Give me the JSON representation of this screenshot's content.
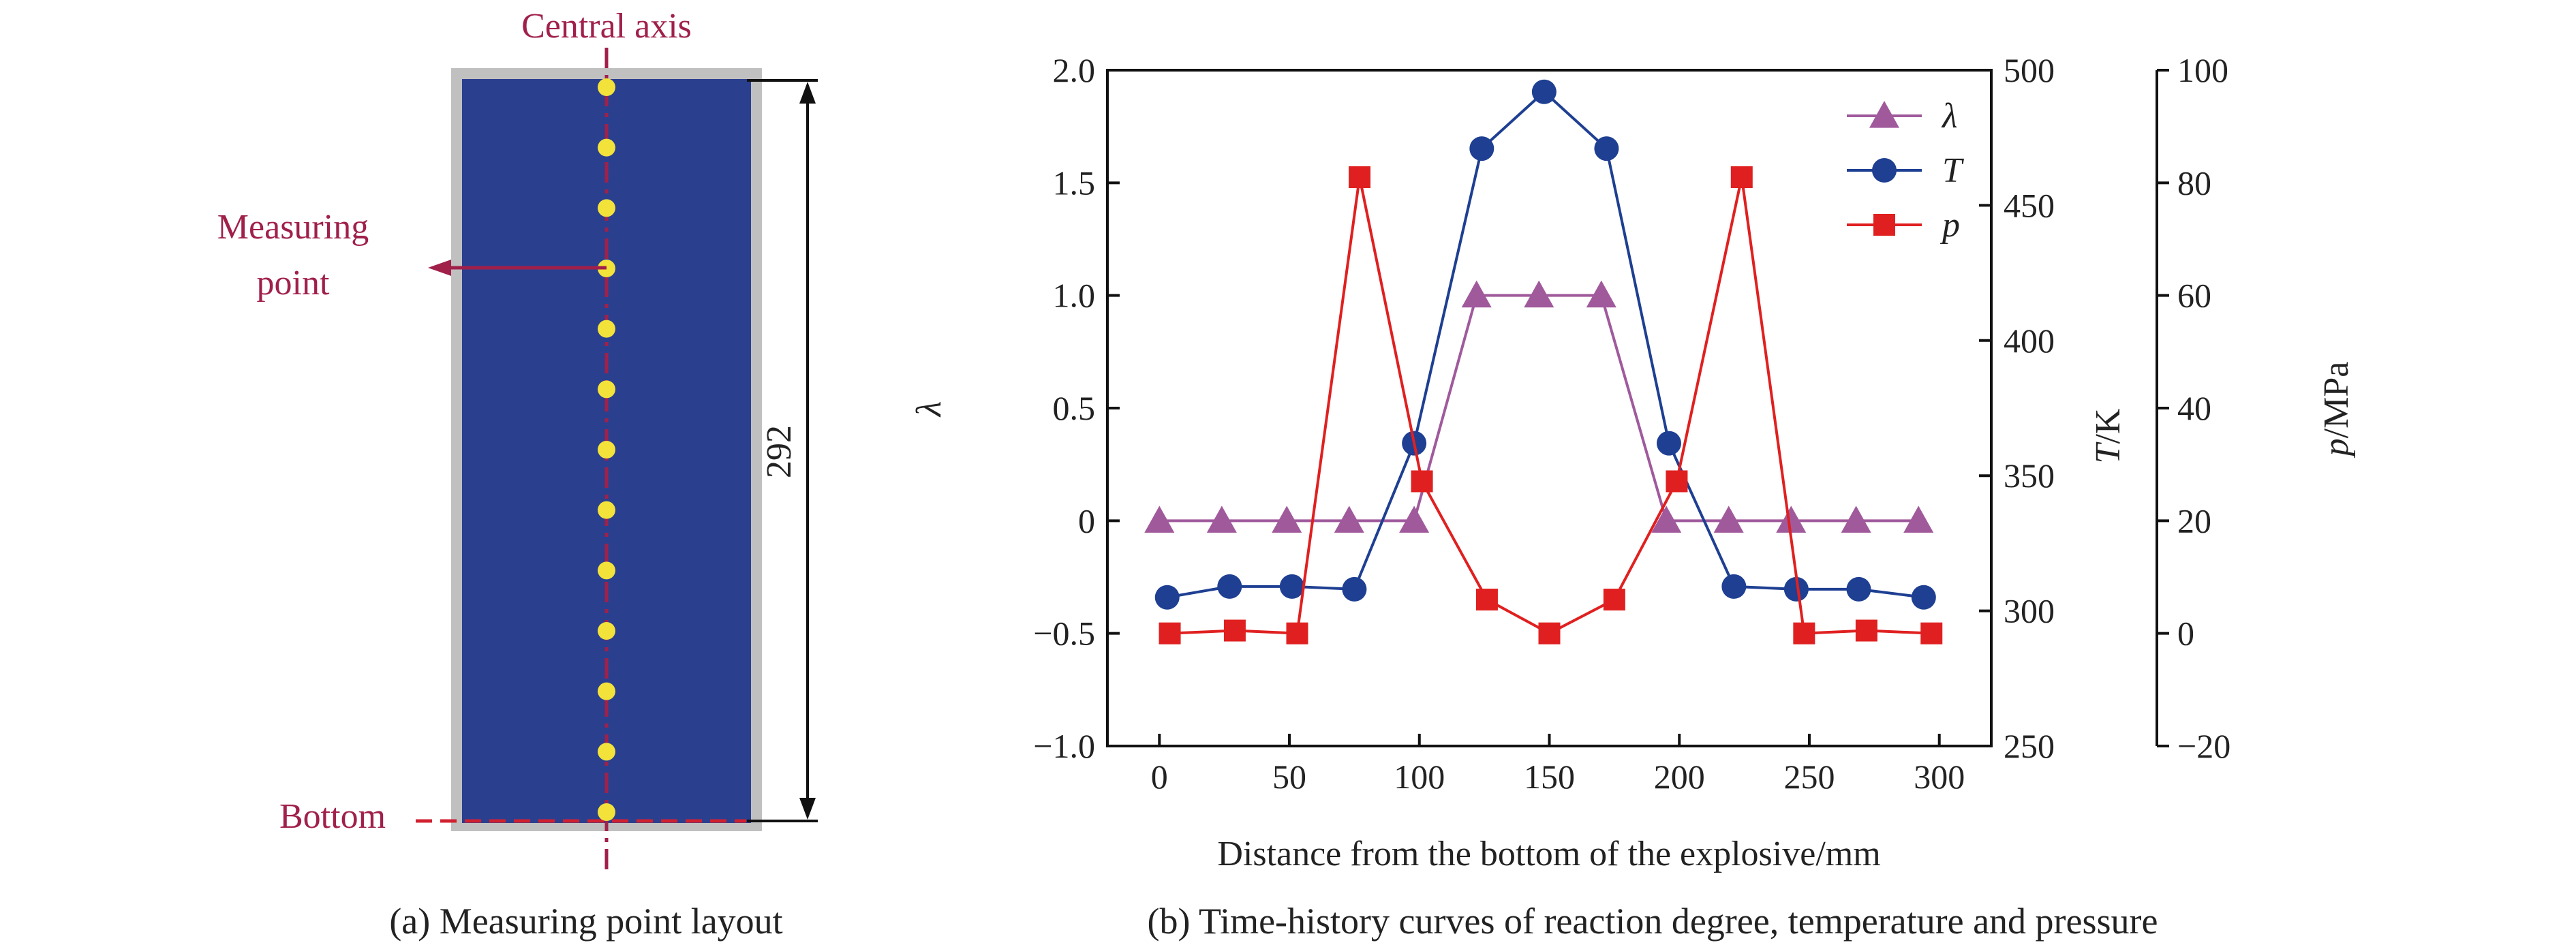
{
  "panel_a": {
    "label_central_axis": "Central axis",
    "label_measuring_point_1": "Measuring",
    "label_measuring_point_2": "point",
    "label_bottom": "Bottom",
    "dimension": "292",
    "caption": "(a) Measuring point layout",
    "colors": {
      "explosive": "#2b3f8f",
      "shell": "#c0c0c0",
      "point": "#f2e23a",
      "axis": "#a0204a"
    },
    "point_count": 13
  },
  "panel_b": {
    "caption": "(b) Time-history curves of reaction degree, temperature and pressure"
  },
  "chart_data": {
    "type": "line",
    "xlabel": "Distance from the bottom of the explosive/mm",
    "xlim": [
      -20,
      320
    ],
    "xticks": [
      0,
      50,
      100,
      150,
      200,
      250,
      300
    ],
    "axes": {
      "lambda": {
        "label": "λ",
        "lim": [
          -1.0,
          2.0
        ],
        "ticks": [
          -1.0,
          -0.5,
          0,
          0.5,
          1.0,
          1.5,
          2.0
        ],
        "tick_labels": [
          "−1.0",
          "−0.5",
          "0",
          "0.5",
          "1.0",
          "1.5",
          "2.0"
        ]
      },
      "T": {
        "label_main": "T",
        "label_unit": "/K",
        "lim": [
          250,
          500
        ],
        "ticks": [
          250,
          300,
          350,
          400,
          450,
          500
        ],
        "tick_labels": [
          "250",
          "300",
          "350",
          "400",
          "450",
          "500"
        ]
      },
      "p": {
        "label_main": "p",
        "label_unit": "/MPa",
        "lim": [
          -20,
          100
        ],
        "ticks": [
          -20,
          0,
          20,
          40,
          60,
          80,
          100
        ],
        "tick_labels": [
          "−20",
          "0",
          "20",
          "40",
          "60",
          "80",
          "100"
        ]
      }
    },
    "legend": {
      "placement": "top-right"
    },
    "series": [
      {
        "name": "λ",
        "axis": "lambda",
        "color": "#a05a9c",
        "marker": "triangle",
        "x": [
          0,
          24,
          49,
          73,
          98,
          122,
          146,
          170,
          195,
          219,
          243,
          268,
          292
        ],
        "values": [
          0,
          0,
          0,
          0,
          0,
          1.0,
          1.0,
          1.0,
          0,
          0,
          0,
          0,
          0
        ]
      },
      {
        "name": "T",
        "axis": "T",
        "color": "#1e3f92",
        "marker": "circle",
        "x": [
          3,
          27,
          51,
          75,
          98,
          124,
          148,
          172,
          196,
          221,
          245,
          269,
          294
        ],
        "values": [
          305,
          309,
          309,
          308,
          362,
          471,
          492,
          471,
          362,
          309,
          308,
          308,
          305
        ]
      },
      {
        "name": "p",
        "axis": "p",
        "color": "#e02020",
        "marker": "square",
        "x": [
          4,
          29,
          53,
          77,
          101,
          126,
          150,
          175,
          199,
          224,
          248,
          272,
          297
        ],
        "values": [
          0,
          0.5,
          0,
          81,
          27,
          6,
          0,
          6,
          27,
          81,
          0,
          0.5,
          0
        ]
      }
    ]
  }
}
